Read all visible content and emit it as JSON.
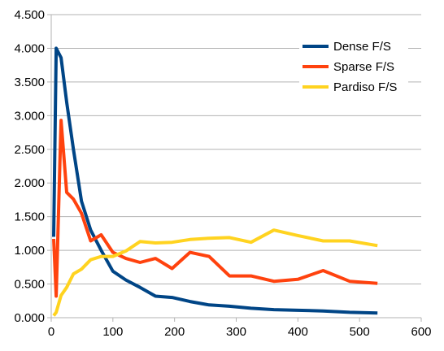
{
  "chart_data": {
    "type": "line",
    "xlim": [
      0,
      600
    ],
    "ylim": [
      0,
      4.5
    ],
    "x_ticks": [
      "0",
      "100",
      "200",
      "300",
      "400",
      "500",
      "600"
    ],
    "y_ticks": [
      "0.000",
      "0.500",
      "1.000",
      "1.500",
      "2.000",
      "2.500",
      "3.000",
      "3.500",
      "4.000",
      "4.500"
    ],
    "grid": "horizontal",
    "legend_position": "top-right",
    "series": [
      {
        "name": "Dense F/S",
        "color": "#004586",
        "points": [
          [
            4,
            1.2
          ],
          [
            8,
            4.0
          ],
          [
            16,
            3.86
          ],
          [
            25,
            3.2
          ],
          [
            36,
            2.5
          ],
          [
            49,
            1.73
          ],
          [
            64,
            1.3
          ],
          [
            81,
            1.0
          ],
          [
            100,
            0.69
          ],
          [
            121,
            0.56
          ],
          [
            144,
            0.45
          ],
          [
            169,
            0.32
          ],
          [
            196,
            0.3
          ],
          [
            225,
            0.24
          ],
          [
            256,
            0.19
          ],
          [
            289,
            0.17
          ],
          [
            324,
            0.14
          ],
          [
            361,
            0.12
          ],
          [
            400,
            0.11
          ],
          [
            441,
            0.1
          ],
          [
            484,
            0.08
          ],
          [
            529,
            0.07
          ]
        ]
      },
      {
        "name": "Sparse F/S",
        "color": "#ff420e",
        "points": [
          [
            4,
            1.17
          ],
          [
            8,
            0.32
          ],
          [
            16,
            2.93
          ],
          [
            25,
            1.86
          ],
          [
            36,
            1.76
          ],
          [
            49,
            1.55
          ],
          [
            64,
            1.14
          ],
          [
            81,
            1.23
          ],
          [
            100,
            0.97
          ],
          [
            121,
            0.88
          ],
          [
            144,
            0.82
          ],
          [
            169,
            0.88
          ],
          [
            196,
            0.73
          ],
          [
            225,
            0.97
          ],
          [
            256,
            0.91
          ],
          [
            289,
            0.62
          ],
          [
            324,
            0.62
          ],
          [
            361,
            0.54
          ],
          [
            400,
            0.57
          ],
          [
            441,
            0.7
          ],
          [
            484,
            0.54
          ],
          [
            529,
            0.51
          ]
        ]
      },
      {
        "name": "Pardiso F/S",
        "color": "#ffd320",
        "points": [
          [
            4,
            0.03
          ],
          [
            8,
            0.08
          ],
          [
            16,
            0.33
          ],
          [
            25,
            0.45
          ],
          [
            36,
            0.65
          ],
          [
            49,
            0.72
          ],
          [
            64,
            0.86
          ],
          [
            81,
            0.91
          ],
          [
            100,
            0.91
          ],
          [
            121,
            0.99
          ],
          [
            144,
            1.13
          ],
          [
            169,
            1.11
          ],
          [
            196,
            1.12
          ],
          [
            225,
            1.16
          ],
          [
            256,
            1.18
          ],
          [
            289,
            1.19
          ],
          [
            324,
            1.12
          ],
          [
            361,
            1.3
          ],
          [
            400,
            1.22
          ],
          [
            441,
            1.14
          ],
          [
            484,
            1.14
          ],
          [
            529,
            1.07
          ]
        ]
      }
    ]
  }
}
